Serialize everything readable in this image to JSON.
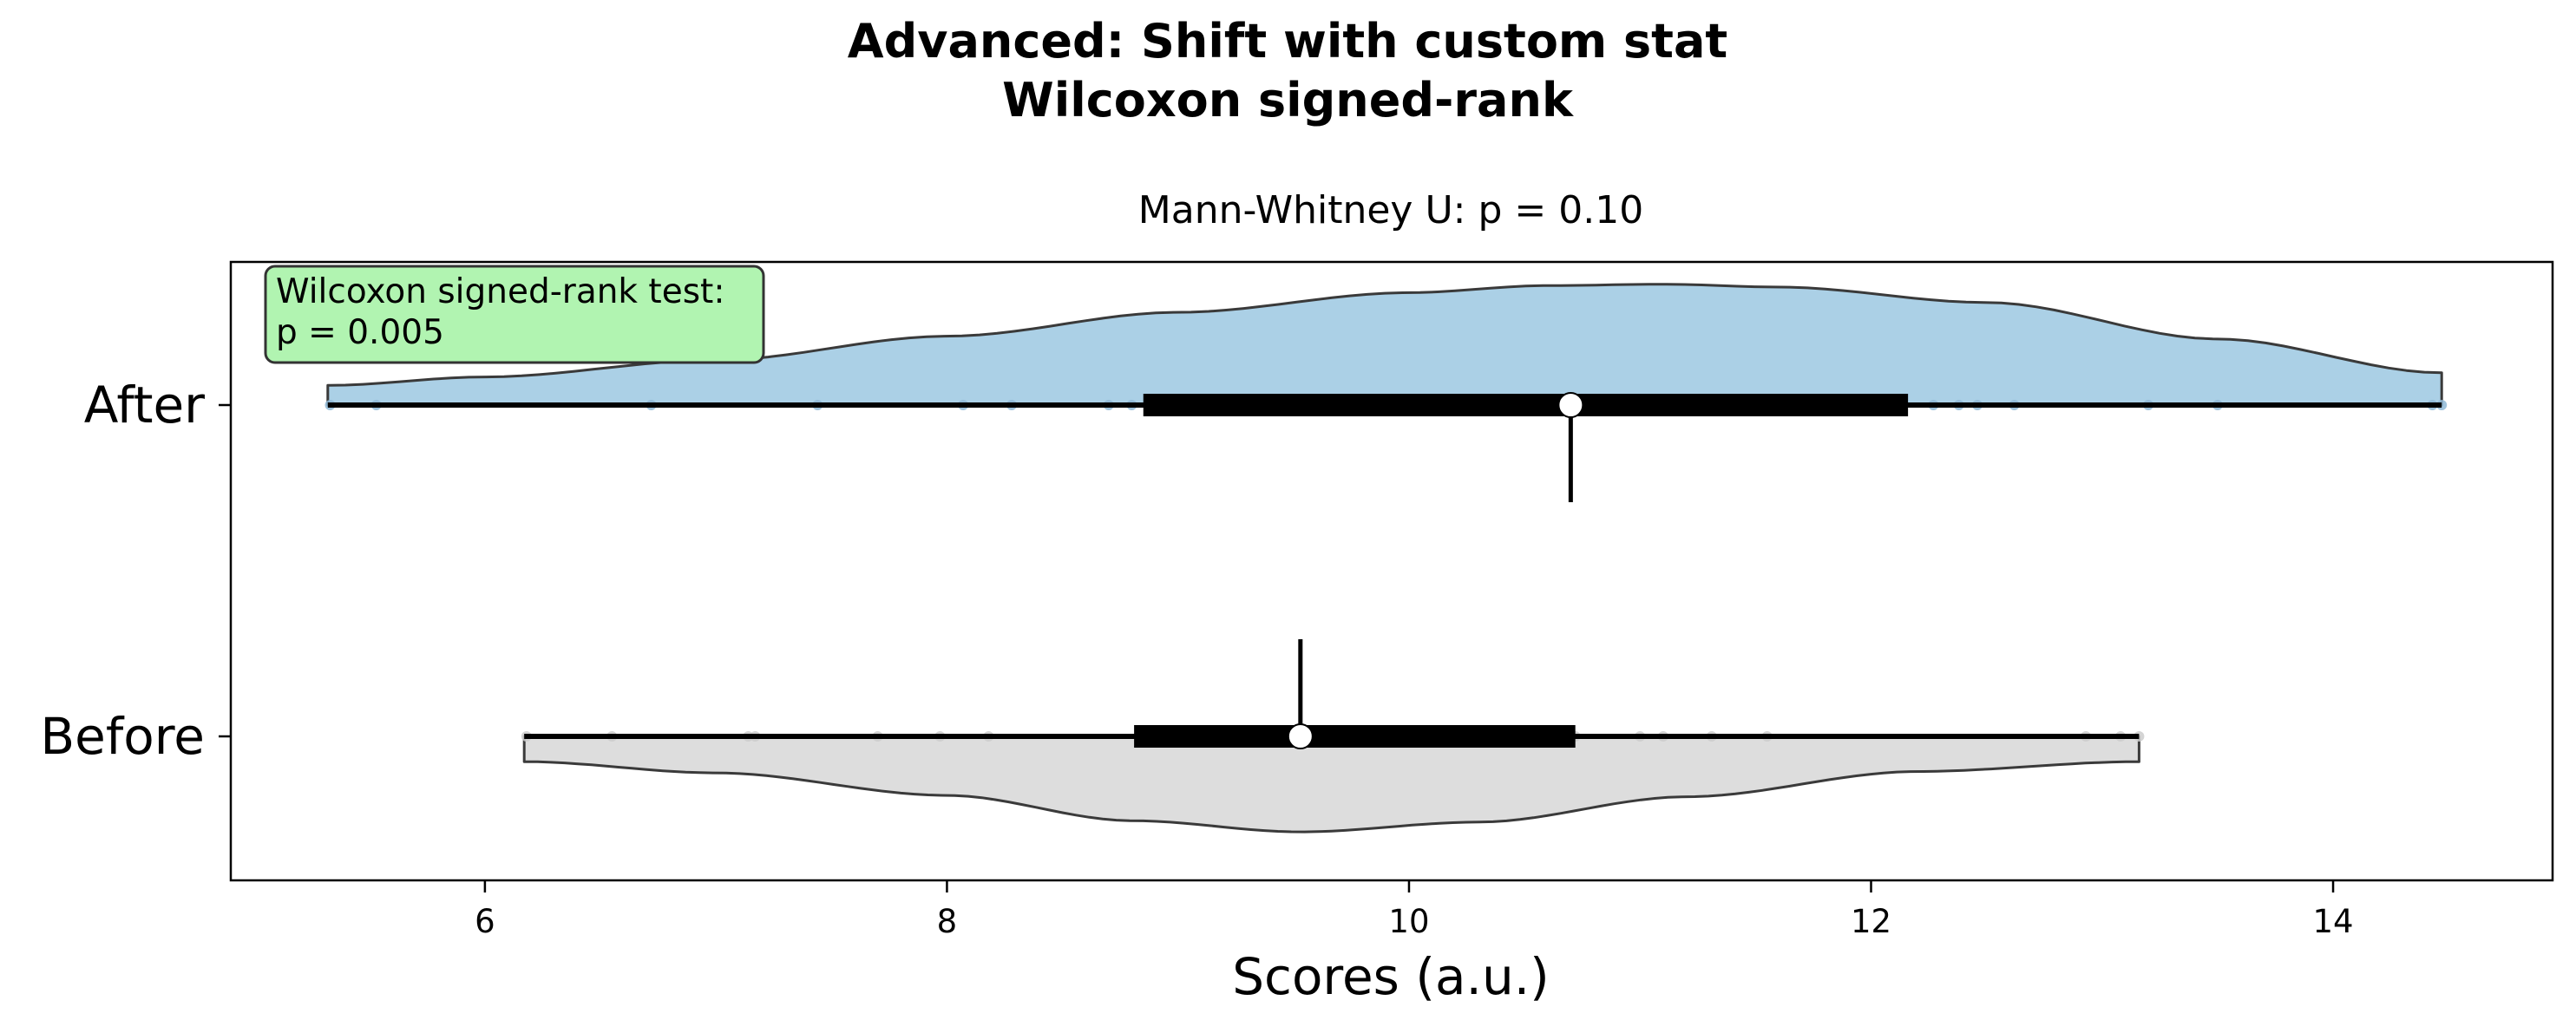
{
  "figure": {
    "suptitle_line1": "Advanced: Shift with custom stat",
    "suptitle_line2": "Wilcoxon signed-rank"
  },
  "chart_data": {
    "type": "violin",
    "orientation": "horizontal",
    "title": "Mann-Whitney U: p = 0.10",
    "xlabel": "Scores (a.u.)",
    "ylabel": "",
    "xlim": [
      4.9,
      14.95
    ],
    "xticks": [
      6,
      8,
      10,
      12,
      14
    ],
    "categories": [
      "After",
      "Before"
    ],
    "grid": false,
    "annotation": {
      "line1": "Wilcoxon signed-rank test:",
      "line2": "p = 0.005",
      "placement": "top-left",
      "fill": "#b1f4b1"
    },
    "series": [
      {
        "name": "After",
        "color": "#abd0e6",
        "point_color": "#8fb9d6",
        "side": "upper",
        "range": [
          5.32,
          14.47
        ],
        "q1": 8.85,
        "median": 10.7,
        "q3": 12.16,
        "density": [
          [
            5.32,
            0.14
          ],
          [
            6.0,
            0.2
          ],
          [
            7.0,
            0.32
          ],
          [
            8.0,
            0.49
          ],
          [
            9.0,
            0.66
          ],
          [
            10.0,
            0.8
          ],
          [
            10.6,
            0.85
          ],
          [
            11.1,
            0.86
          ],
          [
            11.6,
            0.84
          ],
          [
            12.5,
            0.73
          ],
          [
            13.5,
            0.47
          ],
          [
            14.47,
            0.23
          ]
        ],
        "points": [
          5.33,
          5.53,
          6.72,
          7.44,
          8.07,
          8.28,
          8.7,
          8.8,
          9.95,
          10.7,
          11.0,
          12.27,
          12.38,
          12.46,
          12.62,
          13.2,
          13.5,
          14.43,
          14.47
        ]
      },
      {
        "name": "Before",
        "color": "#dddddd",
        "point_color": "#cccccc",
        "side": "lower",
        "range": [
          6.17,
          13.16
        ],
        "q1": 8.81,
        "median": 9.53,
        "q3": 10.72,
        "density": [
          [
            6.17,
            0.18
          ],
          [
            7.0,
            0.26
          ],
          [
            8.0,
            0.42
          ],
          [
            8.8,
            0.6
          ],
          [
            9.53,
            0.68
          ],
          [
            10.3,
            0.61
          ],
          [
            11.2,
            0.43
          ],
          [
            12.2,
            0.25
          ],
          [
            13.16,
            0.18
          ]
        ],
        "points": [
          6.18,
          6.55,
          7.14,
          7.17,
          7.7,
          7.97,
          8.18,
          9.0,
          9.53,
          10.72,
          11.0,
          11.1,
          11.31,
          11.55,
          12.93,
          13.08,
          13.16
        ]
      }
    ]
  }
}
